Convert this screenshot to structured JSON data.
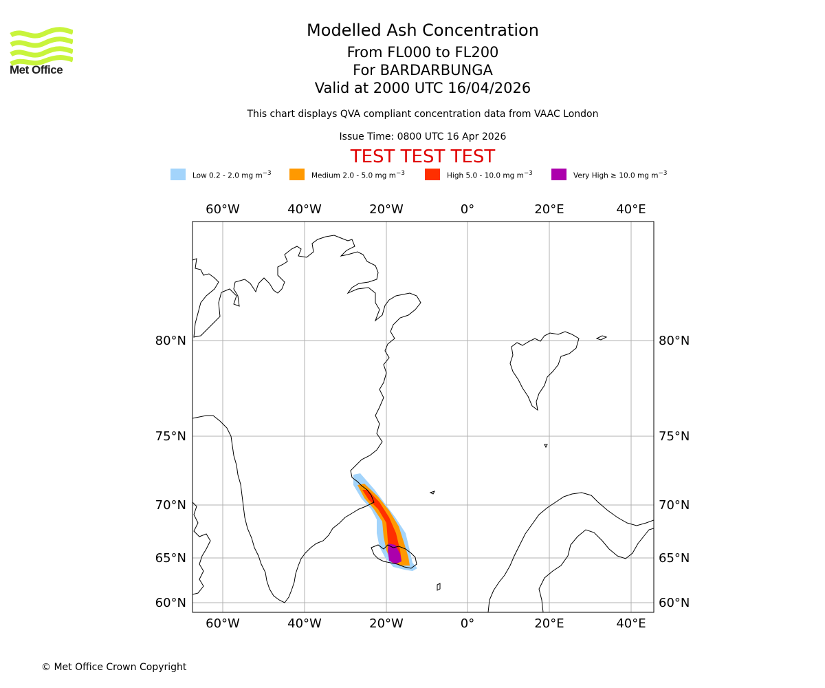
{
  "brand": {
    "name": "Met Office",
    "logo_color": "#c8f43c"
  },
  "title": {
    "main": "Modelled Ash Concentration",
    "levels": "From FL000 to FL200",
    "volcano": "For BARDARBUNGA",
    "valid": "Valid at 2000 UTC 16/04/2026"
  },
  "description": "This chart displays QVA compliant concentration data from VAAC London",
  "issue_time": "Issue Time: 0800 UTC 16 Apr 2026",
  "test_banner": "TEST TEST TEST",
  "legend": [
    {
      "label": "Low 0.2 - 2.0 mg m",
      "sup": "−3",
      "color": "#a3d4fb"
    },
    {
      "label": "Medium 2.0 - 5.0 mg m",
      "sup": "−3",
      "color": "#ff9900"
    },
    {
      "label": "High 5.0 - 10.0 mg m",
      "sup": "−3",
      "color": "#ff2f00"
    },
    {
      "label": "Very High  ≥  10.0 mg m",
      "sup": "−3",
      "color": "#ac00ac"
    }
  ],
  "map": {
    "lon_labels": [
      "60°W",
      "40°W",
      "20°W",
      "0°",
      "20°E",
      "40°E"
    ],
    "lat_labels": [
      "80°N",
      "75°N",
      "70°N",
      "65°N",
      "60°N"
    ],
    "grid_color": "#b0b0b0",
    "coast_color": "#000000"
  },
  "copyright": "© Met Office Crown Copyright"
}
